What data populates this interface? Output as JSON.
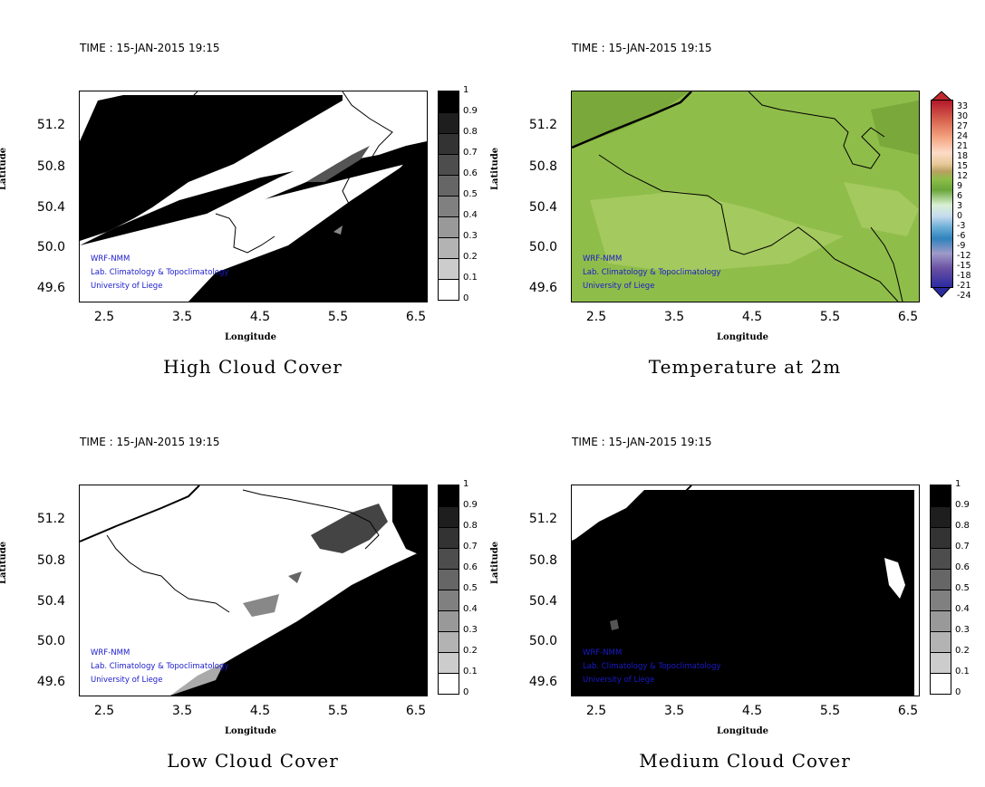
{
  "panels": [
    {
      "time": "TIME : 15-JAN-2015 19:15",
      "title": "High Cloud Cover",
      "xlabel": "Longitude",
      "ylabel": "Latitude",
      "yticks": [
        "51.2",
        "50.8",
        "50.4",
        "50.0",
        "49.6"
      ],
      "xticks": [
        "2.5",
        "3.5",
        "4.5",
        "5.5",
        "6.5"
      ],
      "credits": [
        "WRF-NMM",
        "Lab. Climatology & Topoclimatology",
        "University of Liege"
      ],
      "colorbar_labels": [
        "1",
        "0.9",
        "0.8",
        "0.7",
        "0.6",
        "0.5",
        "0.4",
        "0.3",
        "0.2",
        "0.1",
        "0"
      ]
    },
    {
      "time": "TIME : 15-JAN-2015 19:15",
      "title": "Temperature at 2m",
      "xlabel": "Longitude",
      "ylabel": "Latitude",
      "yticks": [
        "51.2",
        "50.8",
        "50.4",
        "50.0",
        "49.6"
      ],
      "xticks": [
        "2.5",
        "3.5",
        "4.5",
        "5.5",
        "6.5"
      ],
      "credits": [
        "WRF-NMM",
        "Lab. Climatology & Topoclimatology",
        "University of Liege"
      ],
      "colorbar_labels": [
        "33",
        "30",
        "27",
        "24",
        "21",
        "18",
        "15",
        "12",
        "9",
        "6",
        "3",
        "0",
        "-3",
        "-6",
        "-9",
        "-12",
        "-15",
        "-18",
        "-21",
        "-24"
      ]
    },
    {
      "time": "TIME : 15-JAN-2015 19:15",
      "title": "Low Cloud Cover",
      "xlabel": "Longitude",
      "ylabel": "Latitude",
      "yticks": [
        "51.2",
        "50.8",
        "50.4",
        "50.0",
        "49.6"
      ],
      "xticks": [
        "2.5",
        "3.5",
        "4.5",
        "5.5",
        "6.5"
      ],
      "credits": [
        "WRF-NMM",
        "Lab. Climatology & Topoclimatology",
        "University of Liege"
      ],
      "colorbar_labels": [
        "1",
        "0.9",
        "0.8",
        "0.7",
        "0.6",
        "0.5",
        "0.4",
        "0.3",
        "0.2",
        "0.1",
        "0"
      ]
    },
    {
      "time": "TIME : 15-JAN-2015 19:15",
      "title": "Medium Cloud Cover",
      "xlabel": "Longitude",
      "ylabel": "Latitude",
      "yticks": [
        "51.2",
        "50.8",
        "50.4",
        "50.0",
        "49.6"
      ],
      "xticks": [
        "2.5",
        "3.5",
        "4.5",
        "5.5",
        "6.5"
      ],
      "credits": [
        "WRF-NMM",
        "Lab. Climatology & Topoclimatology",
        "University of Liege"
      ],
      "colorbar_labels": [
        "1",
        "0.9",
        "0.8",
        "0.7",
        "0.6",
        "0.5",
        "0.4",
        "0.3",
        "0.2",
        "0.1",
        "0"
      ]
    }
  ],
  "colors": {
    "cloud_dark": "#000000",
    "cloud_clear": "#ffffff",
    "temp_field": "#8fbd4a",
    "temp_field_light": "#a4c95e",
    "temp_field_dark": "#7aa83a",
    "credit_text": "#1a1acc"
  }
}
